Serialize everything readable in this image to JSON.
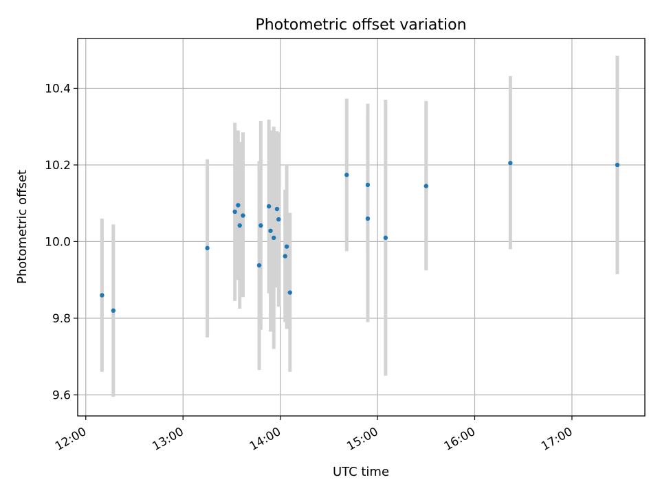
{
  "chart_data": {
    "type": "scatter",
    "title": "Photometric offset variation",
    "xlabel": "UTC time",
    "ylabel": "Photometric offset",
    "x_ticks": [
      "12:00",
      "13:00",
      "14:00",
      "15:00",
      "16:00",
      "17:00"
    ],
    "y_ticks": [
      "9.6",
      "9.8",
      "10.0",
      "10.2",
      "10.4"
    ],
    "xlim": [
      "11:55",
      "17:45"
    ],
    "ylim": [
      9.545,
      10.53
    ],
    "grid": true,
    "colors": {
      "points": "#1f77b4",
      "errorbars": "#d3d3d3",
      "grid": "#b0b0b0"
    },
    "points": [
      {
        "x": "12:10",
        "y": 9.86,
        "ylow": 9.66,
        "yhigh": 10.06
      },
      {
        "x": "12:17",
        "y": 9.82,
        "ylow": 9.595,
        "yhigh": 10.045
      },
      {
        "x": "13:15",
        "y": 9.983,
        "ylow": 9.75,
        "yhigh": 10.215
      },
      {
        "x": "13:32",
        "y": 10.078,
        "ylow": 9.845,
        "yhigh": 10.31
      },
      {
        "x": "13:34",
        "y": 10.095,
        "ylow": 9.9,
        "yhigh": 10.29
      },
      {
        "x": "13:35",
        "y": 10.042,
        "ylow": 9.825,
        "yhigh": 10.26
      },
      {
        "x": "13:37",
        "y": 10.068,
        "ylow": 9.855,
        "yhigh": 10.285
      },
      {
        "x": "13:47",
        "y": 9.938,
        "ylow": 9.665,
        "yhigh": 10.21
      },
      {
        "x": "13:48",
        "y": 10.042,
        "ylow": 9.77,
        "yhigh": 10.315
      },
      {
        "x": "13:53",
        "y": 10.092,
        "ylow": 9.865,
        "yhigh": 10.318
      },
      {
        "x": "13:54",
        "y": 10.028,
        "ylow": 9.765,
        "yhigh": 10.29
      },
      {
        "x": "13:56",
        "y": 10.01,
        "ylow": 9.72,
        "yhigh": 10.3
      },
      {
        "x": "13:58",
        "y": 10.085,
        "ylow": 9.88,
        "yhigh": 10.288
      },
      {
        "x": "13:59",
        "y": 10.058,
        "ylow": 9.83,
        "yhigh": 10.285
      },
      {
        "x": "14:03",
        "y": 9.962,
        "ylow": 9.79,
        "yhigh": 10.135
      },
      {
        "x": "14:04",
        "y": 9.987,
        "ylow": 9.772,
        "yhigh": 10.2
      },
      {
        "x": "14:06",
        "y": 9.867,
        "ylow": 9.66,
        "yhigh": 10.075
      },
      {
        "x": "14:41",
        "y": 10.174,
        "ylow": 9.975,
        "yhigh": 10.373
      },
      {
        "x": "14:54",
        "y": 10.148,
        "ylow": 9.965,
        "yhigh": 10.33
      },
      {
        "x": "14:54",
        "y": 10.06,
        "ylow": 9.79,
        "yhigh": 10.36
      },
      {
        "x": "15:05",
        "y": 10.01,
        "ylow": 9.65,
        "yhigh": 10.37
      },
      {
        "x": "15:30",
        "y": 10.145,
        "ylow": 9.925,
        "yhigh": 10.367
      },
      {
        "x": "16:22",
        "y": 10.205,
        "ylow": 9.98,
        "yhigh": 10.432
      },
      {
        "x": "17:28",
        "y": 10.2,
        "ylow": 9.915,
        "yhigh": 10.485
      }
    ]
  }
}
